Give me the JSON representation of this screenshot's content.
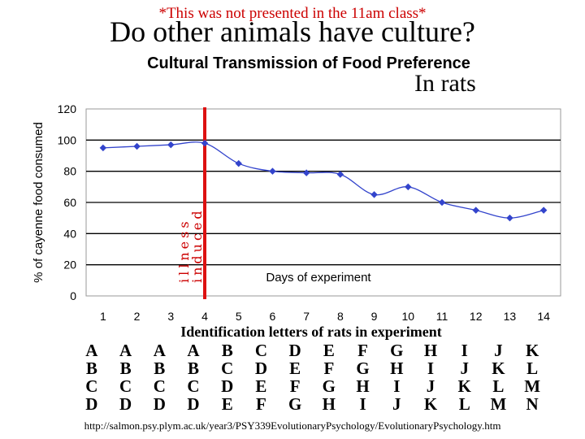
{
  "slide": {
    "note": "*This was not presented in the 11am class*",
    "title": "Do other animals have culture?",
    "subtitle": "In rats",
    "footer": "http://salmon.psy.plym.ac.uk/year3/PSY339EvolutionaryPsychology/EvolutionaryPsychology.htm"
  },
  "chart_data": {
    "type": "line",
    "title": "Cultural Transmission of Food Preference",
    "ylabel": "% of cayenne food consumed",
    "xlabel": "Days of experiment",
    "x": [
      1,
      2,
      3,
      4,
      5,
      6,
      7,
      8,
      9,
      10,
      11,
      12,
      13,
      14
    ],
    "series": [
      {
        "values": [
          95,
          96,
          97,
          98,
          85,
          80,
          79,
          78,
          65,
          70,
          60,
          55,
          50,
          55
        ]
      }
    ],
    "ylim": [
      0,
      120
    ],
    "yticks": [
      0,
      20,
      40,
      60,
      80,
      100,
      120
    ],
    "xlim": [
      0.5,
      14.5
    ],
    "grid": "horizontal",
    "line_color": "#3344cc",
    "marker_line": {
      "x": 4,
      "color": "#dd1111",
      "label_top": "illness",
      "label_bottom": "induced"
    },
    "id_label": "Identification letters of rats in experiment",
    "rat_groups": [
      [
        "A",
        "B",
        "C",
        "D"
      ],
      [
        "A",
        "B",
        "C",
        "D"
      ],
      [
        "A",
        "B",
        "C",
        "D"
      ],
      [
        "A",
        "B",
        "C",
        "D"
      ],
      [
        "B",
        "C",
        "D",
        "E"
      ],
      [
        "C",
        "D",
        "E",
        "F"
      ],
      [
        "D",
        "E",
        "F",
        "G"
      ],
      [
        "E",
        "F",
        "G",
        "H"
      ],
      [
        "F",
        "G",
        "H",
        "I"
      ],
      [
        "G",
        "H",
        "I",
        "J"
      ],
      [
        "H",
        "I",
        "J",
        "K"
      ],
      [
        "I",
        "J",
        "K",
        "L"
      ],
      [
        "J",
        "K",
        "L",
        "M"
      ],
      [
        "K",
        "L",
        "M",
        "N"
      ]
    ]
  }
}
